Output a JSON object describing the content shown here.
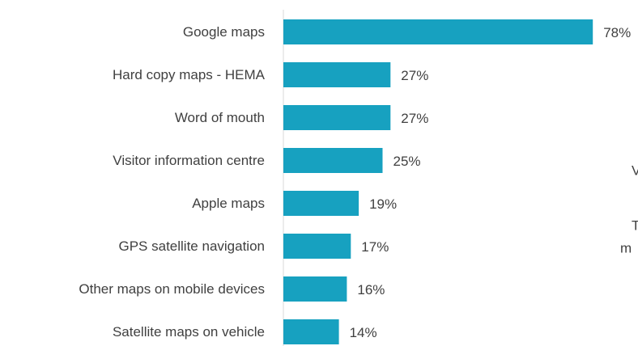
{
  "chart_data": {
    "type": "bar",
    "orientation": "horizontal",
    "categories": [
      "Google maps",
      "Hard copy maps - HEMA",
      "Word of mouth",
      "Visitor information centre",
      "Apple maps",
      "GPS satellite navigation",
      "Other maps on mobile devices",
      "Satellite maps on vehicle"
    ],
    "values": [
      78,
      27,
      27,
      25,
      19,
      17,
      16,
      14
    ],
    "value_labels": [
      "78%",
      "27%",
      "27%",
      "25%",
      "19%",
      "17%",
      "16%",
      "14%"
    ],
    "color": "#17a1c0",
    "xlim": [
      0,
      80
    ],
    "annotations": [
      "V",
      "T",
      "m"
    ]
  }
}
